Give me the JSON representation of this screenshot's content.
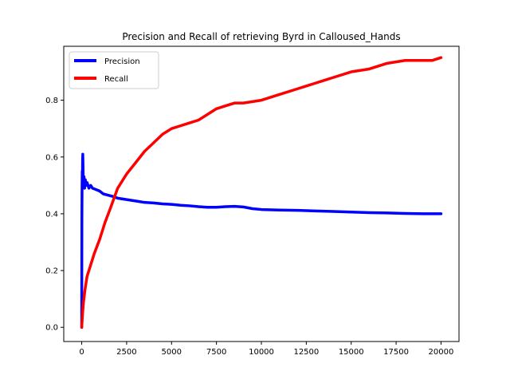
{
  "chart_data": {
    "type": "line",
    "title": "Precision and Recall of retrieving Byrd in Calloused_Hands",
    "xlabel": "",
    "ylabel": "",
    "xlim": [
      -1000,
      21000
    ],
    "ylim": [
      -0.05,
      0.99
    ],
    "x_ticks": [
      0,
      2500,
      5000,
      7500,
      10000,
      12500,
      15000,
      17500,
      20000
    ],
    "x_tick_labels": [
      "0",
      "2500",
      "5000",
      "7500",
      "10000",
      "12500",
      "15000",
      "17500",
      "20000"
    ],
    "y_ticks": [
      0.0,
      0.2,
      0.4,
      0.6,
      0.8
    ],
    "y_tick_labels": [
      "0.0",
      "0.2",
      "0.4",
      "0.6",
      "0.8"
    ],
    "grid": false,
    "legend_position": "top-left",
    "series": [
      {
        "name": "Precision",
        "color": "#0000ff",
        "x": [
          0,
          10,
          20,
          30,
          40,
          50,
          60,
          80,
          100,
          130,
          160,
          200,
          250,
          300,
          400,
          500,
          600,
          800,
          1000,
          1200,
          1500,
          1800,
          2000,
          2500,
          3000,
          3500,
          4000,
          4500,
          5000,
          5500,
          6000,
          6500,
          7000,
          7500,
          8000,
          8500,
          9000,
          9500,
          10000,
          11000,
          12000,
          13000,
          14000,
          15000,
          16000,
          17000,
          18000,
          19000,
          20000
        ],
        "y": [
          0.0,
          0.38,
          0.5,
          0.55,
          0.52,
          0.59,
          0.61,
          0.54,
          0.5,
          0.53,
          0.49,
          0.52,
          0.5,
          0.51,
          0.49,
          0.5,
          0.49,
          0.485,
          0.48,
          0.47,
          0.465,
          0.46,
          0.455,
          0.45,
          0.445,
          0.44,
          0.438,
          0.435,
          0.433,
          0.43,
          0.428,
          0.425,
          0.423,
          0.423,
          0.425,
          0.426,
          0.424,
          0.418,
          0.415,
          0.413,
          0.412,
          0.41,
          0.408,
          0.406,
          0.404,
          0.403,
          0.401,
          0.4,
          0.4
        ]
      },
      {
        "name": "Recall",
        "color": "#ff0000",
        "x": [
          0,
          50,
          100,
          200,
          300,
          500,
          700,
          1000,
          1300,
          1600,
          2000,
          2500,
          3000,
          3500,
          4000,
          4500,
          5000,
          5500,
          6000,
          6500,
          7000,
          7500,
          8000,
          8500,
          9000,
          10000,
          11000,
          12000,
          12500,
          13000,
          13500,
          14000,
          15000,
          16000,
          17000,
          18000,
          19000,
          19500,
          20000
        ],
        "y": [
          0.0,
          0.05,
          0.09,
          0.14,
          0.18,
          0.22,
          0.26,
          0.31,
          0.37,
          0.42,
          0.49,
          0.54,
          0.58,
          0.62,
          0.65,
          0.68,
          0.7,
          0.71,
          0.72,
          0.73,
          0.75,
          0.77,
          0.78,
          0.79,
          0.79,
          0.8,
          0.82,
          0.84,
          0.85,
          0.86,
          0.87,
          0.88,
          0.9,
          0.91,
          0.93,
          0.94,
          0.94,
          0.94,
          0.95
        ]
      }
    ]
  }
}
